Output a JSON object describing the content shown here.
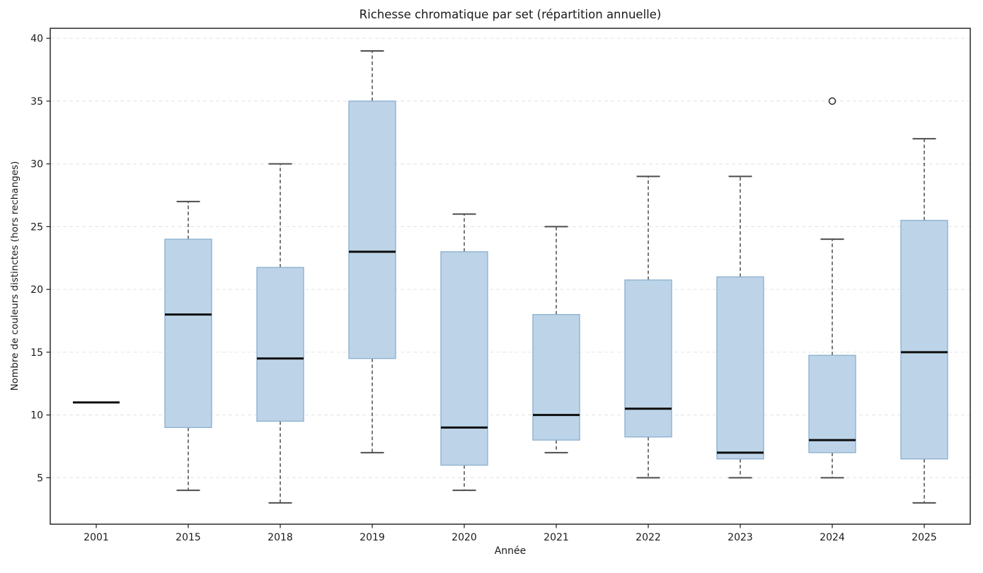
{
  "chart_data": {
    "type": "box",
    "title": "Richesse chromatique par set (répartition annuelle)",
    "xlabel": "Année",
    "ylabel": "Nombre de couleurs distinctes (hors rechanges)",
    "categories": [
      "2001",
      "2015",
      "2018",
      "2019",
      "2020",
      "2021",
      "2022",
      "2023",
      "2024",
      "2025"
    ],
    "ylim": [
      1.3,
      40.8
    ],
    "yticks": [
      5,
      10,
      15,
      20,
      25,
      30,
      35,
      40
    ],
    "grid": "horizontal-dashed",
    "legend": "none",
    "boxes": [
      {
        "year": "2001",
        "whisker_low": 11,
        "q1": 11,
        "median": 11,
        "q3": 11,
        "whisker_high": 11,
        "outliers": []
      },
      {
        "year": "2015",
        "whisker_low": 4,
        "q1": 9,
        "median": 18,
        "q3": 24,
        "whisker_high": 27,
        "outliers": []
      },
      {
        "year": "2018",
        "whisker_low": 3,
        "q1": 9.5,
        "median": 14.5,
        "q3": 21.75,
        "whisker_high": 30,
        "outliers": []
      },
      {
        "year": "2019",
        "whisker_low": 7,
        "q1": 14.5,
        "median": 23,
        "q3": 35,
        "whisker_high": 39,
        "outliers": []
      },
      {
        "year": "2020",
        "whisker_low": 4,
        "q1": 6,
        "median": 9,
        "q3": 23,
        "whisker_high": 26,
        "outliers": []
      },
      {
        "year": "2021",
        "whisker_low": 7,
        "q1": 8,
        "median": 10,
        "q3": 18,
        "whisker_high": 25,
        "outliers": []
      },
      {
        "year": "2022",
        "whisker_low": 5,
        "q1": 8.25,
        "median": 10.5,
        "q3": 20.75,
        "whisker_high": 29,
        "outliers": []
      },
      {
        "year": "2023",
        "whisker_low": 5,
        "q1": 6.5,
        "median": 7,
        "q3": 21,
        "whisker_high": 29,
        "outliers": []
      },
      {
        "year": "2024",
        "whisker_low": 5,
        "q1": 7,
        "median": 8,
        "q3": 14.75,
        "whisker_high": 24,
        "outliers": [
          35
        ]
      },
      {
        "year": "2025",
        "whisker_low": 3,
        "q1": 6.5,
        "median": 15,
        "q3": 25.5,
        "whisker_high": 32,
        "outliers": []
      }
    ],
    "colors": {
      "box_fill": "#bdd4e8",
      "box_edge": "#8fb2d1",
      "median": "#0d0d0d",
      "whisker": "#4d4d4d",
      "grid": "#e5e5e5",
      "axis": "#1a1a1a",
      "text": "#1a1a1a",
      "outlier_edge": "#2a2a2a",
      "background": "#ffffff"
    }
  }
}
